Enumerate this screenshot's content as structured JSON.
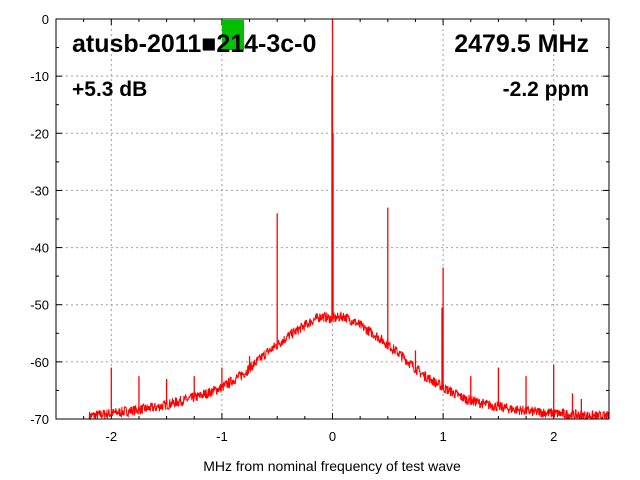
{
  "chart_data": {
    "type": "line",
    "title": "",
    "xlabel": "MHz from nominal frequency of test wave",
    "ylabel": "",
    "xlim": [
      -2.5,
      2.5
    ],
    "ylim": [
      -70,
      0
    ],
    "x_ticks": [
      -2,
      -1,
      0,
      1,
      2
    ],
    "x_tick_labels": [
      "-2",
      "-1",
      "0",
      "1",
      "2"
    ],
    "y_ticks": [
      0,
      -10,
      -20,
      -30,
      -40,
      -50,
      -60,
      -70
    ],
    "y_tick_labels": [
      "0",
      "-10",
      "-20",
      "-30",
      "-40",
      "-50",
      "-60",
      "-70"
    ],
    "grid": true,
    "series_color": "#ff0000",
    "marker_color": "#00c000",
    "annotations": {
      "device": "atusb-2011■214-3c-0",
      "frequency": "2479.5 MHz",
      "gain": "+5.3 dB",
      "ppm": "-2.2 ppm"
    },
    "envelope": {
      "x": [
        -2.2,
        -2.0,
        -1.8,
        -1.6,
        -1.4,
        -1.2,
        -1.0,
        -0.8,
        -0.6,
        -0.4,
        -0.2,
        -0.1,
        0,
        0.1,
        0.2,
        0.4,
        0.6,
        0.8,
        1.0,
        1.2,
        1.4,
        1.6,
        1.8,
        2.0,
        2.2,
        2.5
      ],
      "y": [
        -69.5,
        -69,
        -68.5,
        -68,
        -67,
        -66,
        -64.5,
        -62,
        -58.5,
        -55.5,
        -53,
        -52,
        -52.5,
        -52,
        -53,
        -55.5,
        -58.5,
        -62,
        -64.5,
        -66.5,
        -67.5,
        -68.2,
        -68.7,
        -69,
        -69.3,
        -69.6
      ]
    },
    "spurs": [
      {
        "x": 0.0,
        "y": 0
      },
      {
        "x": -0.005,
        "y": -10
      },
      {
        "x": 0.005,
        "y": -20
      },
      {
        "x": 0.5,
        "y": -33
      },
      {
        "x": -0.5,
        "y": -34
      },
      {
        "x": 1.0,
        "y": -43.5
      },
      {
        "x": 0.99,
        "y": -50.5
      },
      {
        "x": -1.0,
        "y": -61
      },
      {
        "x": -2.0,
        "y": -61
      },
      {
        "x": 1.5,
        "y": -61
      },
      {
        "x": 2.0,
        "y": -60.5
      },
      {
        "x": -1.5,
        "y": -63
      },
      {
        "x": -1.75,
        "y": -62.5
      },
      {
        "x": -1.25,
        "y": -62.5
      },
      {
        "x": -0.75,
        "y": -59
      },
      {
        "x": 0.75,
        "y": -58
      },
      {
        "x": 1.25,
        "y": -62.5
      },
      {
        "x": 1.75,
        "y": -62.5
      },
      {
        "x": 2.17,
        "y": -65.5
      },
      {
        "x": 2.25,
        "y": -66.5
      }
    ]
  }
}
